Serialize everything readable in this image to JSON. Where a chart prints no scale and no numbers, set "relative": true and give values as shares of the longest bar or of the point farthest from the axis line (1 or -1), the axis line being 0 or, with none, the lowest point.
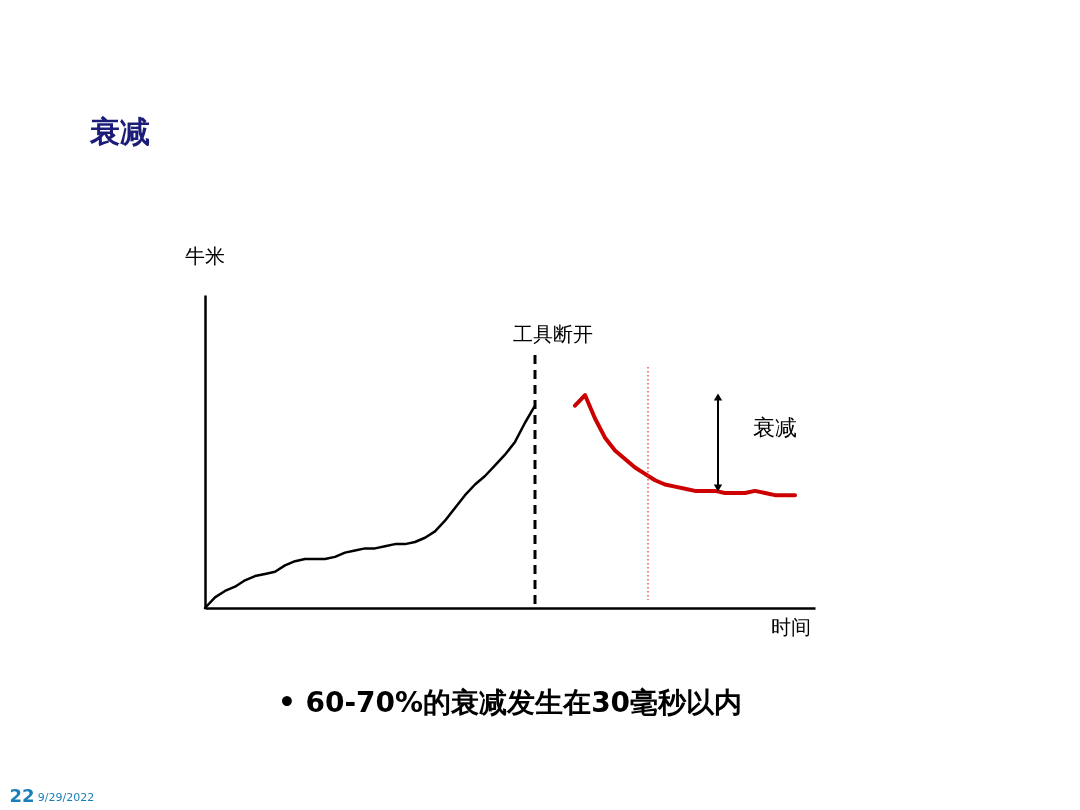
{
  "chart_data": {
    "type": "line",
    "title": "衰减",
    "xlabel": "时间",
    "relative": true,
    "categories": [
      null,
      null,
      null,
      null,
      null,
      null,
      null,
      null,
      null,
      null,
      null,
      null,
      null,
      null,
      null,
      null,
      null,
      null,
      null,
      null,
      null,
      null,
      null,
      null,
      null,
      null,
      null,
      null,
      null,
      null,
      null,
      null,
      null,
      null,
      null,
      null,
      null,
      null,
      null,
      null,
      null,
      null,
      null,
      null,
      null,
      null,
      null,
      null,
      null,
      null,
      null,
      null,
      null,
      null,
      null,
      null,
      null,
      null,
      null,
      null,
      null,
      null
    ],
    "series": [
      {
        "color": "#000000",
        "values": [
          0,
          0.05,
          0.08,
          0.1,
          0.13,
          0.15,
          0.16,
          0.17,
          0.2,
          0.22,
          0.23,
          0.23,
          0.23,
          0.24,
          0.26,
          0.27,
          0.28,
          0.28,
          0.29,
          0.3,
          0.3,
          0.31,
          0.33,
          0.36,
          0.41,
          0.47,
          0.53,
          0.58,
          0.62,
          0.67,
          0.72,
          0.78,
          0.87,
          0.95,
          null,
          null,
          null,
          null,
          null,
          null,
          null,
          null,
          null,
          null,
          null,
          null,
          null,
          null,
          null,
          null,
          null,
          null,
          null,
          null,
          null,
          null,
          null,
          null,
          null,
          null,
          null,
          null
        ]
      },
      {
        "color": "#cc0000",
        "values": [
          null,
          null,
          null,
          null,
          null,
          null,
          null,
          null,
          null,
          null,
          null,
          null,
          null,
          null,
          null,
          null,
          null,
          null,
          null,
          null,
          null,
          null,
          null,
          null,
          null,
          null,
          null,
          null,
          null,
          null,
          null,
          null,
          null,
          null,
          null,
          null,
          null,
          0.95,
          1,
          0.89,
          0.8,
          0.74,
          0.7,
          0.66,
          0.63,
          0.6,
          0.58,
          0.57,
          0.56,
          0.55,
          0.55,
          0.55,
          0.54,
          0.54,
          0.54,
          0.55,
          0.54,
          0.53,
          0.53,
          0.53,
          null,
          null
        ]
      }
    ],
    "annotations": [
      "牛米",
      "工具断开",
      "衰减",
      "• 60-70%的衰减发生在30毫秒以内",
      "22",
      "9/29/2022"
    ]
  }
}
